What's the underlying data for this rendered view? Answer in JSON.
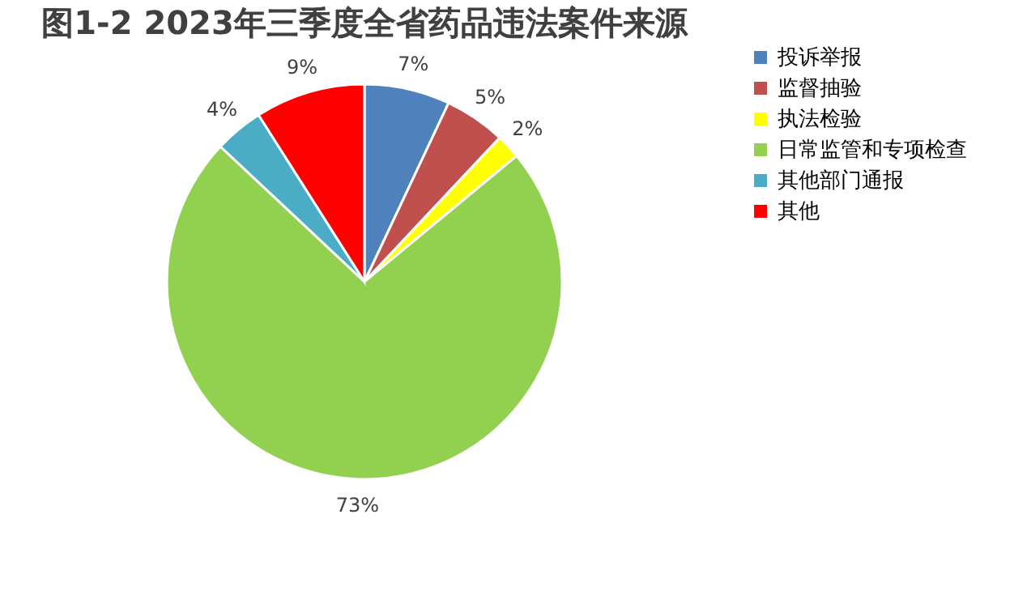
{
  "chart_data": {
    "type": "pie",
    "title": "图1-2  2023年三季度全省药品违法案件来源",
    "categories": [
      "投诉举报",
      "监督抽验",
      "执法检验",
      "日常监管和专项检查",
      "其他部门通报",
      "其他"
    ],
    "values": [
      7,
      5,
      2,
      73,
      4,
      9
    ],
    "colors": [
      "#4f81bd",
      "#c0504d",
      "#ffff00",
      "#92d050",
      "#4bacc6",
      "#ff0000"
    ],
    "value_labels": [
      "7%",
      "5%",
      "2%",
      "73%",
      "4%",
      "9%"
    ],
    "legend": "right"
  }
}
